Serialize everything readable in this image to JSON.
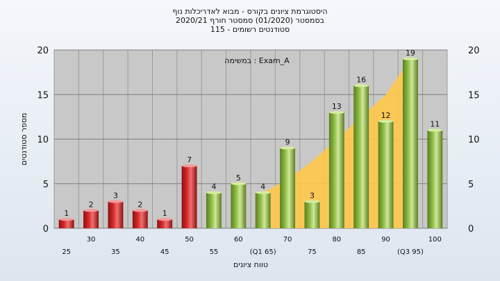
{
  "titles": [
    "היסטוגרמת ציונים בקורס - מבוא לאדריכלות נוף",
    "בסמסטר  (01/2020)  סמסטר חורף  2020/21",
    "סטודנטים רשומים - 115"
  ],
  "chart_data": {
    "type": "bar",
    "categories": [
      "25",
      "30",
      "35",
      "40",
      "45",
      "50",
      "55",
      "60",
      "(Q1 65)",
      "70",
      "75",
      "80",
      "85",
      "90",
      "(Q3 95)",
      "100"
    ],
    "values": [
      1,
      2,
      3,
      2,
      1,
      7,
      4,
      5,
      4,
      9,
      3,
      13,
      16,
      12,
      19,
      11
    ],
    "data_labels": [
      "1",
      "2",
      "3",
      "2",
      "1",
      "7",
      "4",
      "5",
      "4",
      "9",
      "3",
      "13",
      "16",
      "12",
      "19",
      "11"
    ],
    "failing_color": "#d42a2a",
    "passing_color": "#8fbc45",
    "fail_threshold_count": 6,
    "area_series": {
      "color": "#ffc84a",
      "x_index": [
        8,
        9,
        10,
        11,
        12,
        13,
        14
      ],
      "values": [
        4,
        5.5,
        7.5,
        10,
        12.5,
        15,
        19
      ]
    },
    "xlabel": "טווח ציונים",
    "ylabel": "מספר סטודנטים",
    "ylim": [
      0,
      20
    ],
    "yticks": [
      "0",
      "5",
      "10",
      "15",
      "20"
    ],
    "grid": true,
    "annotation": "במשימה : Exam_A"
  }
}
